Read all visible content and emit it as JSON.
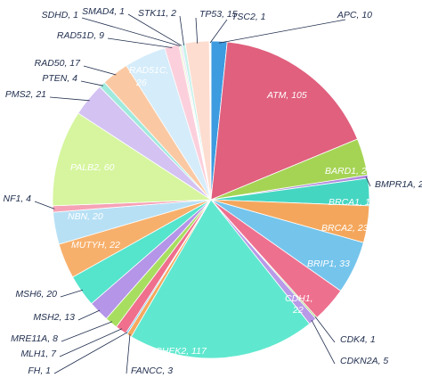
{
  "chart_data": {
    "type": "pie",
    "title": "",
    "start_angle_deg": 0,
    "direction": "clockwise",
    "slices": [
      {
        "gene": "APC",
        "value": 10,
        "color": "#3d9be0"
      },
      {
        "gene": "ATM",
        "value": 105,
        "color": "#e0607e"
      },
      {
        "gene": "BARD1",
        "value": 23,
        "color": "#a5d455"
      },
      {
        "gene": "BMPR1A",
        "value": 2,
        "color": "#b08ae0"
      },
      {
        "gene": "BRCA1",
        "value": 17,
        "color": "#45d6c2"
      },
      {
        "gene": "BRCA2",
        "value": 23,
        "color": "#f4a75c"
      },
      {
        "gene": "BRIP1",
        "value": 33,
        "color": "#75c4ec"
      },
      {
        "gene": "CDH1",
        "value": 22,
        "color": "#ee708f"
      },
      {
        "gene": "CDK4",
        "value": 1,
        "color": "#9bd16a"
      },
      {
        "gene": "CDKN2A",
        "value": 5,
        "color": "#b89ae8"
      },
      {
        "gene": "CHEK2",
        "value": 117,
        "color": "#5fe8cf"
      },
      {
        "gene": "FANCC",
        "value": 3,
        "color": "#f5a85e"
      },
      {
        "gene": "FH",
        "value": 1,
        "color": "#6fc0ec"
      },
      {
        "gene": "MLH1",
        "value": 7,
        "color": "#ef6f8c"
      },
      {
        "gene": "MRE11A",
        "value": 8,
        "color": "#a8de60"
      },
      {
        "gene": "MSH2",
        "value": 13,
        "color": "#b495e8"
      },
      {
        "gene": "MSH6",
        "value": 20,
        "color": "#55e4cc"
      },
      {
        "gene": "MUTYH",
        "value": 22,
        "color": "#f7b06c"
      },
      {
        "gene": "NBN",
        "value": 20,
        "color": "#b7e0f5"
      },
      {
        "gene": "NF1",
        "value": 4,
        "color": "#f6a2b6"
      },
      {
        "gene": "PALB2",
        "value": 60,
        "color": "#d6f59e"
      },
      {
        "gene": "PMS2",
        "value": 21,
        "color": "#d3c2f2"
      },
      {
        "gene": "PTEN",
        "value": 4,
        "color": "#a0eadd"
      },
      {
        "gene": "RAD50",
        "value": 17,
        "color": "#fac9a3"
      },
      {
        "gene": "RAD51C",
        "value": 26,
        "color": "#d5ecfa"
      },
      {
        "gene": "RAD51D",
        "value": 9,
        "color": "#fbd0dc"
      },
      {
        "gene": "SDHD",
        "value": 1,
        "color": "#e7f7c5"
      },
      {
        "gene": "SMAD4",
        "value": 1,
        "color": "#e5dbf8"
      },
      {
        "gene": "STK11",
        "value": 2,
        "color": "#c5f2ea"
      },
      {
        "gene": "TP53",
        "value": 15,
        "color": "#fdddd0"
      },
      {
        "gene": "TSC2",
        "value": 1,
        "color": "#ffffff"
      }
    ],
    "labels": [
      {
        "text": "APC, 10",
        "placement": "outside"
      },
      {
        "text": "ATM, 105",
        "placement": "inside"
      },
      {
        "text": "BARD1, 23",
        "placement": "inside"
      },
      {
        "text": "BMPR1A, 2",
        "placement": "outside"
      },
      {
        "text": "BRCA1, 17",
        "placement": "inside"
      },
      {
        "text": "BRCA2, 23",
        "placement": "inside"
      },
      {
        "text": "BRIP1, 33",
        "placement": "inside"
      },
      {
        "text": "CDH1,",
        "text2": "22",
        "placement": "inside"
      },
      {
        "text": "CDK4, 1",
        "placement": "outside"
      },
      {
        "text": "CDKN2A, 5",
        "placement": "outside"
      },
      {
        "text": "CHEK2, 117",
        "placement": "inside"
      },
      {
        "text": "FANCC, 3",
        "placement": "outside"
      },
      {
        "text": "FH, 1",
        "placement": "outside"
      },
      {
        "text": "MLH1, 7",
        "placement": "outside"
      },
      {
        "text": "MRE11A, 8",
        "placement": "outside"
      },
      {
        "text": "MSH2, 13",
        "placement": "outside"
      },
      {
        "text": "MSH6, 20",
        "placement": "outside"
      },
      {
        "text": "MUTYH, 22",
        "placement": "inside"
      },
      {
        "text": "NBN, 20",
        "placement": "inside"
      },
      {
        "text": "NF1, 4",
        "placement": "outside"
      },
      {
        "text": "PALB2, 60",
        "placement": "inside"
      },
      {
        "text": "PMS2, 21",
        "placement": "outside"
      },
      {
        "text": "PTEN, 4",
        "placement": "outside"
      },
      {
        "text": "RAD50, 17",
        "placement": "outside"
      },
      {
        "text": "RAD51C,",
        "text2": "26",
        "placement": "inside"
      },
      {
        "text": "RAD51D, 9",
        "placement": "outside"
      },
      {
        "text": "SDHD, 1",
        "placement": "outside"
      },
      {
        "text": "SMAD4, 1",
        "placement": "outside"
      },
      {
        "text": "STK11, 2",
        "placement": "outside"
      },
      {
        "text": "TP53, 15",
        "placement": "outside"
      },
      {
        "text": "TSC2, 1",
        "placement": "outside"
      }
    ]
  }
}
